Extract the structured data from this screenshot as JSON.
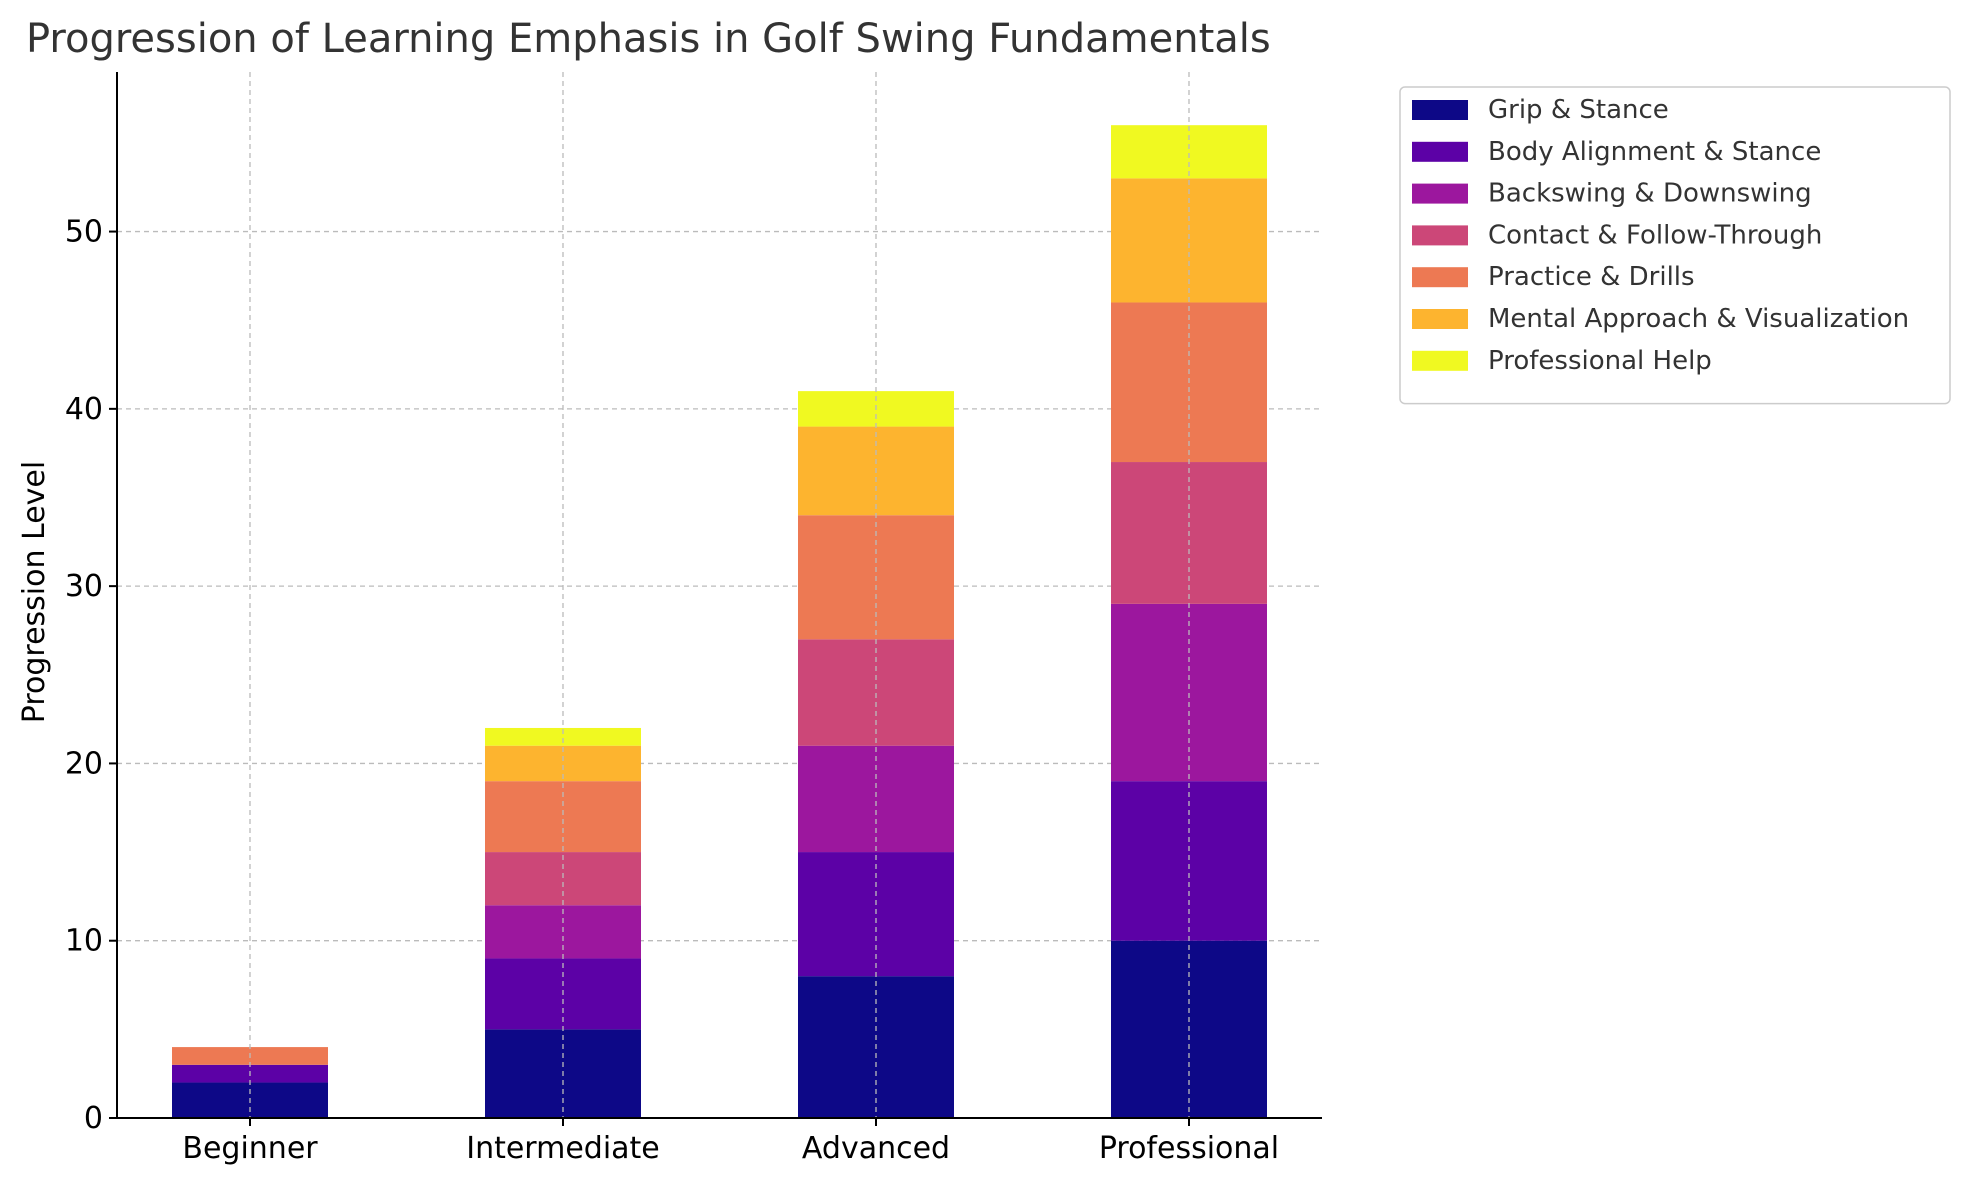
{
  "chart_data": {
    "type": "bar",
    "stacked": true,
    "title": "Progression of Learning Emphasis in Golf Swing Fundamentals",
    "xlabel": "",
    "ylabel": "Progression Level",
    "categories": [
      "Beginner",
      "Intermediate",
      "Advanced",
      "Professional"
    ],
    "ylim": [
      0,
      59
    ],
    "yticks": [
      0,
      10,
      20,
      30,
      40,
      50
    ],
    "grid": true,
    "legend_position": "outside-top-right",
    "series": [
      {
        "name": "Grip & Stance",
        "color": "#0d0887",
        "values": [
          2,
          5,
          8,
          10
        ]
      },
      {
        "name": "Body Alignment & Stance",
        "color": "#5c01a6",
        "values": [
          1,
          4,
          7,
          9
        ]
      },
      {
        "name": "Backswing & Downswing",
        "color": "#9c179e",
        "values": [
          0,
          3,
          6,
          10
        ]
      },
      {
        "name": "Contact & Follow-Through",
        "color": "#cc4778",
        "values": [
          0,
          3,
          6,
          8
        ]
      },
      {
        "name": "Practice & Drills",
        "color": "#ed7953",
        "values": [
          1,
          4,
          7,
          9
        ]
      },
      {
        "name": "Mental Approach & Visualization",
        "color": "#fdb42f",
        "values": [
          0,
          2,
          5,
          7
        ]
      },
      {
        "name": "Professional Help",
        "color": "#f0f921",
        "values": [
          0,
          1,
          2,
          3
        ]
      }
    ]
  },
  "colors": {
    "text": "#333333",
    "axis": "#000000",
    "grid": "#bbbbbb",
    "legend_border": "#cccccc"
  }
}
